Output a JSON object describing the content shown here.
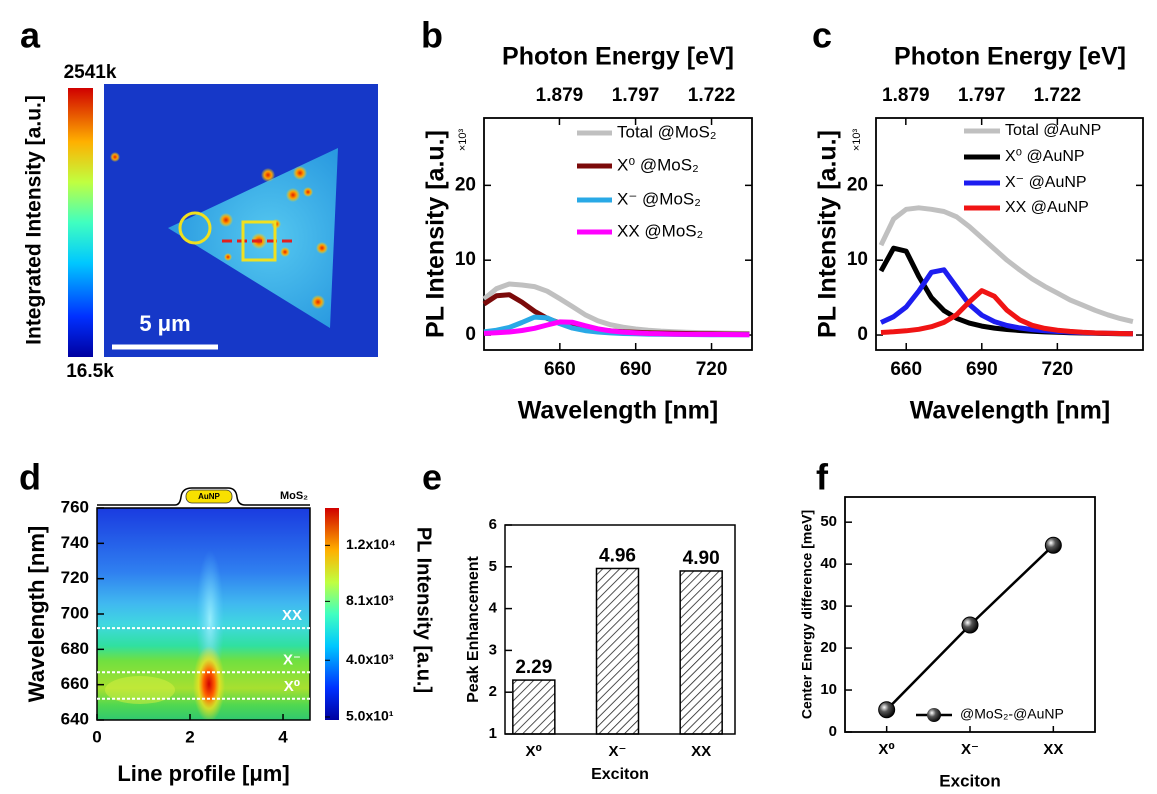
{
  "chart_data": [
    {
      "panel": "a",
      "type": "image",
      "colorbar_label": "Integrated Intensity [a.u.]",
      "colorbar_ticks": [
        {
          "value": 2541000,
          "label": "2541k"
        },
        {
          "value": 16500,
          "label": "16.5k"
        }
      ],
      "scale_bar_label": "5 μm"
    },
    {
      "panel": "b",
      "type": "line",
      "title": "Photon Energy [eV]",
      "x2ticks": [
        1.879,
        1.797,
        1.722
      ],
      "xlabel": "Wavelength [nm]",
      "ylabel": "PL Intensity [a.u.]",
      "y_multiplier": "×10³",
      "x": [
        630,
        635,
        640,
        645,
        650,
        655,
        660,
        665,
        670,
        675,
        680,
        685,
        690,
        695,
        700,
        705,
        710,
        715,
        720,
        725,
        730,
        735
      ],
      "xlim": [
        630,
        736
      ],
      "xticks": [
        660,
        690,
        720
      ],
      "ylim": [
        -2,
        29
      ],
      "yticks": [
        0,
        10,
        20
      ],
      "series": [
        {
          "name": "Total @MoS₂",
          "color": "#c0c0c0",
          "values": [
            4.8,
            6.2,
            6.82,
            6.68,
            6.47,
            5.86,
            4.86,
            3.8,
            2.72,
            1.92,
            1.38,
            1.05,
            0.81,
            0.64,
            0.53,
            0.44,
            0.38,
            0.33,
            0.29,
            0.26,
            0.22,
            0.2
          ]
        },
        {
          "name": "X⁰ @MoS₂",
          "color": "#7b0a0a",
          "values": [
            4.15,
            5.26,
            5.39,
            4.4,
            3.17,
            2.23,
            1.59,
            1.17,
            0.88,
            0.69,
            0.55,
            0.45,
            0.37,
            0.31,
            0.27,
            0.23,
            0.2,
            0.18,
            0.16,
            0.14,
            0.12,
            0.11
          ]
        },
        {
          "name": "X⁻ @MoS₂",
          "color": "#29a9e6",
          "values": [
            0.43,
            0.64,
            1.02,
            1.68,
            2.4,
            2.29,
            1.52,
            0.93,
            0.59,
            0.4,
            0.28,
            0.21,
            0.16,
            0.12,
            0.1,
            0.08,
            0.07,
            0.06,
            0.05,
            0.05,
            0.04,
            0.04
          ]
        },
        {
          "name": "XX @MoS₂",
          "color": "#ff00ff",
          "values": [
            0.22,
            0.3,
            0.41,
            0.6,
            0.9,
            1.34,
            1.75,
            1.7,
            1.25,
            0.83,
            0.55,
            0.39,
            0.28,
            0.21,
            0.16,
            0.13,
            0.11,
            0.09,
            0.08,
            0.07,
            0.06,
            0.05
          ]
        }
      ]
    },
    {
      "panel": "c",
      "type": "line",
      "title": "Photon Energy [eV]",
      "x2ticks": [
        1.879,
        1.797,
        1.722
      ],
      "xlabel": "Wavelength [nm]",
      "ylabel": "PL Intensity [a.u.]",
      "y_multiplier": "×10³",
      "x": [
        650,
        655,
        660,
        665,
        670,
        675,
        680,
        685,
        690,
        695,
        700,
        705,
        710,
        715,
        720,
        725,
        730,
        735,
        740,
        745,
        750
      ],
      "xlim": [
        648,
        754
      ],
      "xticks": [
        660,
        690,
        720
      ],
      "ylim": [
        -2,
        29
      ],
      "yticks": [
        0,
        10,
        20
      ],
      "series": [
        {
          "name": "Total @AuNP",
          "color": "#c0c0c0",
          "values": [
            12,
            15.5,
            16.8,
            17,
            16.8,
            16.5,
            15.8,
            14.5,
            13,
            11.5,
            10,
            8.7,
            7.5,
            6.5,
            5.6,
            4.7,
            4,
            3.3,
            2.7,
            2.2,
            1.8
          ]
        },
        {
          "name": "X⁰ @AuNP",
          "color": "#000000",
          "values": [
            8.54,
            11.6,
            11.2,
            7.84,
            5.0,
            3.26,
            2.23,
            1.6,
            1.2,
            0.93,
            0.74,
            0.6,
            0.5,
            0.42,
            0.36,
            0.31,
            0.27,
            0.23,
            0.21,
            0.18,
            0.17
          ]
        },
        {
          "name": "X⁻ @AuNP",
          "color": "#1d1df0",
          "values": [
            1.68,
            2.45,
            3.75,
            5.88,
            8.38,
            8.71,
            6.41,
            4.11,
            2.65,
            1.8,
            1.28,
            0.95,
            0.73,
            0.58,
            0.47,
            0.39,
            0.32,
            0.27,
            0.24,
            0.21,
            0.18
          ]
        },
        {
          "name": "XX @AuNP",
          "color": "#f01414",
          "values": [
            0.34,
            0.43,
            0.57,
            0.77,
            1.11,
            1.69,
            2.71,
            4.41,
            5.94,
            5.17,
            3.31,
            2.03,
            1.3,
            0.89,
            0.64,
            0.48,
            0.37,
            0.29,
            0.24,
            0.2,
            0.17
          ]
        }
      ]
    },
    {
      "panel": "d",
      "type": "heatmap",
      "xlabel": "Line profile [μm]",
      "ylabel": "Wavelength [nm]",
      "xlim": [
        0,
        4.58
      ],
      "xticks": [
        0,
        2,
        4
      ],
      "ylim": [
        640,
        760
      ],
      "yticks": [
        640,
        660,
        680,
        700,
        720,
        740,
        760
      ],
      "colorbar_label": "PL Intensity [a.u.]",
      "clim": [
        -160,
        14600
      ],
      "colorbar_ticks": [
        {
          "value": 12000,
          "label": "1.2x10⁴"
        },
        {
          "value": 8100,
          "label": "8.1x10³"
        },
        {
          "value": 4000,
          "label": "4.0x10³"
        },
        {
          "value": 50,
          "label": "5.0x10¹"
        }
      ],
      "lines": [
        {
          "label": "XX",
          "value": 692
        },
        {
          "label": "X⁻",
          "value": 667
        },
        {
          "label": "X⁰",
          "value": 652
        }
      ],
      "schematic_labels": [
        "AuNP",
        "MoS₂"
      ]
    },
    {
      "panel": "e",
      "type": "bar",
      "categories": [
        "X⁰",
        "X⁻",
        "XX"
      ],
      "values": [
        2.29,
        4.96,
        4.9
      ],
      "value_labels": [
        "2.29",
        "4.96",
        "4.90"
      ],
      "ylim": [
        1,
        6
      ],
      "yticks": [
        1,
        2,
        3,
        4,
        5,
        6
      ],
      "xlabel": "Exciton",
      "ylabel": "Peak Enhancement",
      "hatch": true
    },
    {
      "panel": "f",
      "type": "line",
      "categories": [
        "X⁰",
        "X⁻",
        "XX"
      ],
      "series": [
        {
          "name": "@MoS₂-@AuNP",
          "color": "#000000",
          "values": [
            5.3,
            25.5,
            44.5
          ]
        }
      ],
      "ylim": [
        0,
        56
      ],
      "yticks": [
        0,
        10,
        20,
        30,
        40,
        50
      ],
      "xlabel": "Exciton",
      "ylabel": "Center Energy difference [meV]",
      "markers": true
    }
  ]
}
